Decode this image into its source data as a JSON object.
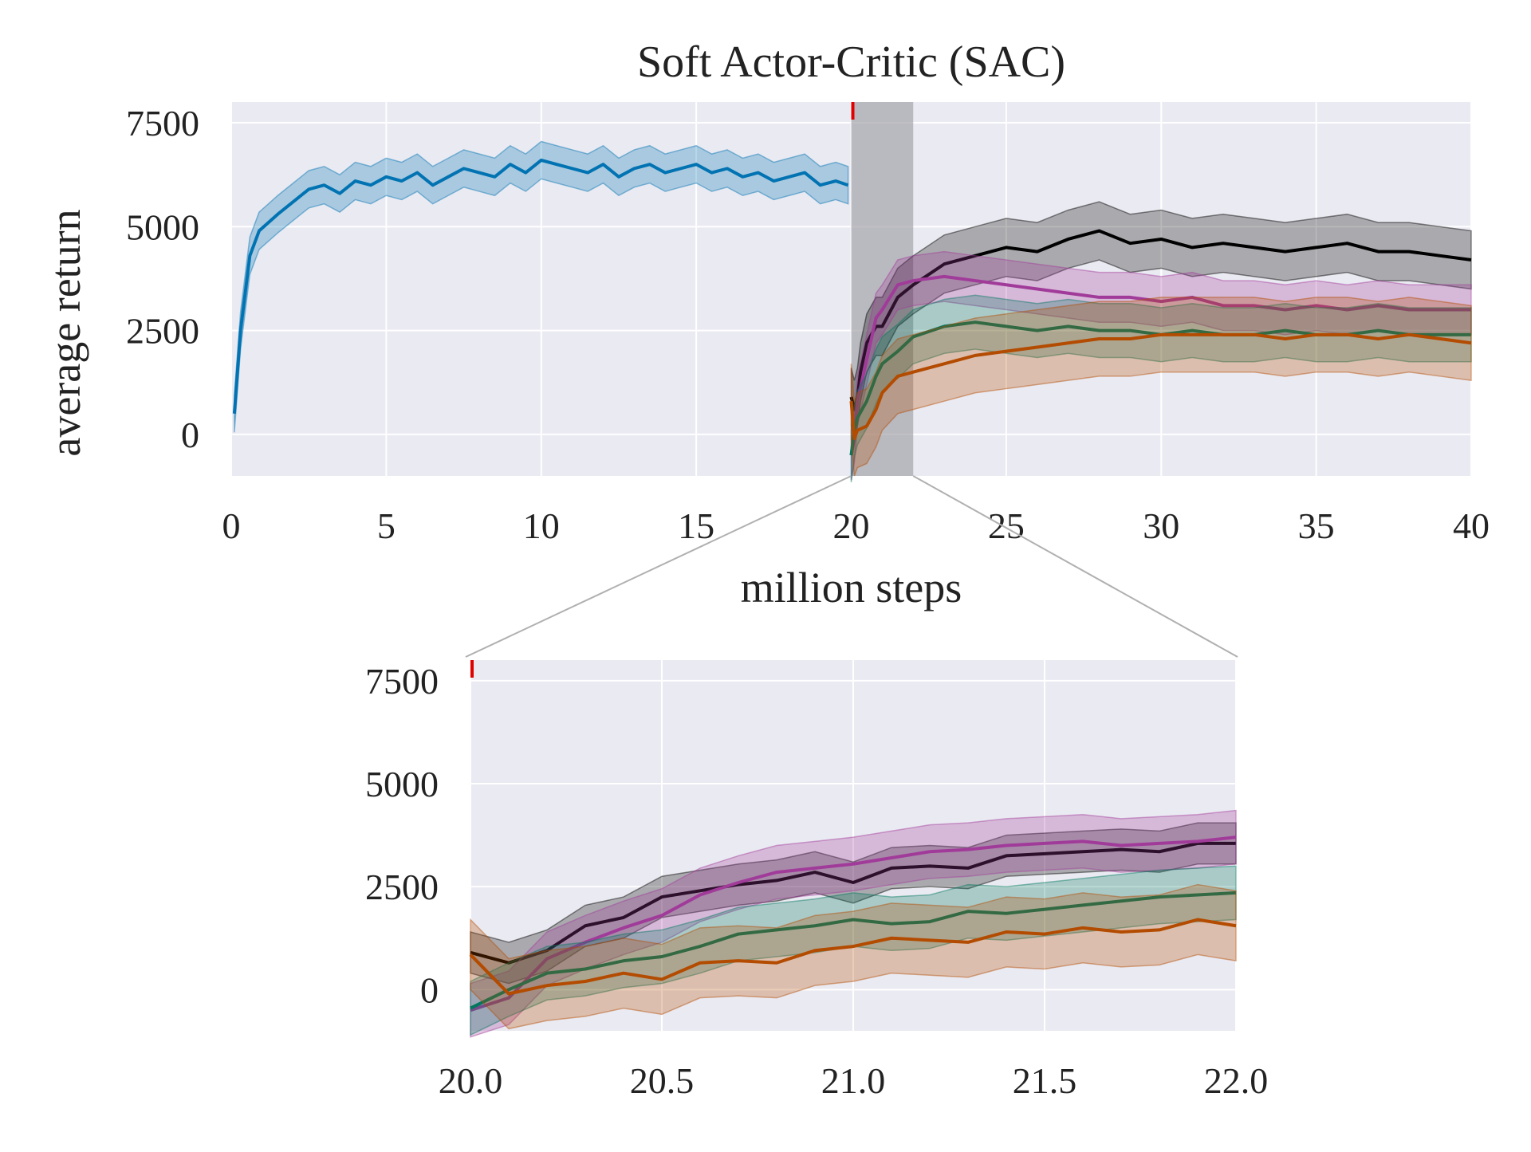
{
  "chart_data": [
    {
      "id": "main",
      "type": "line",
      "title": "Soft Actor-Critic (SAC)",
      "xlabel": "million steps",
      "ylabel": "average return",
      "xlim": [
        0,
        40
      ],
      "ylim": [
        -1000,
        8000
      ],
      "xticks": [
        0,
        5,
        10,
        15,
        20,
        25,
        30,
        35,
        40
      ],
      "xtick_labels": [
        "0",
        "5",
        "10",
        "15",
        "20",
        "25",
        "30",
        "35",
        "40"
      ],
      "yticks": [
        0,
        2500,
        5000,
        7500
      ],
      "ytick_labels": [
        "0",
        "2500",
        "5000",
        "7500"
      ],
      "grid": true,
      "shaded_region": [
        20,
        22
      ],
      "marker_x": 20,
      "series": [
        {
          "color": "#0173b2",
          "x": [
            0.1,
            0.3,
            0.6,
            0.9,
            1.2,
            1.5,
            2,
            2.5,
            3,
            3.5,
            4,
            4.5,
            5,
            5.5,
            6,
            6.5,
            7,
            7.5,
            8,
            8.5,
            9,
            9.5,
            10,
            10.5,
            11,
            11.5,
            12,
            12.5,
            13,
            13.5,
            14,
            14.5,
            15,
            15.5,
            16,
            16.5,
            17,
            17.5,
            18,
            18.5,
            19,
            19.5,
            19.9
          ],
          "y": [
            500,
            2500,
            4300,
            4900,
            5100,
            5300,
            5600,
            5900,
            6000,
            5800,
            6100,
            6000,
            6200,
            6100,
            6300,
            6000,
            6200,
            6400,
            6300,
            6200,
            6500,
            6300,
            6600,
            6500,
            6400,
            6300,
            6500,
            6200,
            6400,
            6500,
            6300,
            6400,
            6500,
            6300,
            6400,
            6200,
            6300,
            6100,
            6200,
            6300,
            6000,
            6100,
            6000
          ],
          "band": 450
        },
        {
          "color": "#000000",
          "x": [
            20.0,
            20.1,
            20.2,
            20.3,
            20.5,
            20.8,
            21,
            21.5,
            22,
            23,
            24,
            25,
            26,
            27,
            28,
            29,
            30,
            31,
            32,
            33,
            34,
            35,
            36,
            37,
            38,
            39,
            40
          ],
          "y": [
            900,
            600,
            900,
            1500,
            2200,
            2600,
            2600,
            3300,
            3600,
            4100,
            4300,
            4500,
            4400,
            4700,
            4900,
            4600,
            4700,
            4500,
            4600,
            4500,
            4400,
            4500,
            4600,
            4400,
            4400,
            4300,
            4200
          ],
          "band": 700
        },
        {
          "color": "#a13b9a",
          "x": [
            20.0,
            20.1,
            20.2,
            20.5,
            20.8,
            21,
            21.5,
            22,
            23,
            24,
            25,
            26,
            27,
            28,
            29,
            30,
            31,
            32,
            33,
            34,
            35,
            36,
            37,
            38,
            39,
            40
          ],
          "y": [
            -500,
            -100,
            800,
            1800,
            2800,
            3000,
            3600,
            3700,
            3800,
            3700,
            3600,
            3500,
            3400,
            3300,
            3300,
            3200,
            3300,
            3100,
            3100,
            3000,
            3100,
            3000,
            3100,
            3000,
            3000,
            3000
          ],
          "band": 600
        },
        {
          "color": "#02775e",
          "x": [
            20.0,
            20.1,
            20.2,
            20.5,
            20.8,
            21,
            21.5,
            22,
            23,
            24,
            25,
            26,
            27,
            28,
            29,
            30,
            31,
            32,
            33,
            34,
            35,
            36,
            37,
            38,
            39,
            40
          ],
          "y": [
            -500,
            100,
            400,
            800,
            1400,
            1700,
            2000,
            2350,
            2600,
            2700,
            2600,
            2500,
            2600,
            2500,
            2500,
            2400,
            2500,
            2400,
            2400,
            2500,
            2400,
            2400,
            2500,
            2400,
            2400,
            2400
          ],
          "band": 650
        },
        {
          "color": "#b34b00",
          "x": [
            20.0,
            20.1,
            20.2,
            20.5,
            20.8,
            21,
            21.5,
            22,
            23,
            24,
            25,
            26,
            27,
            28,
            29,
            30,
            31,
            32,
            33,
            34,
            35,
            36,
            37,
            38,
            39,
            40
          ],
          "y": [
            800,
            -100,
            100,
            200,
            600,
            1000,
            1400,
            1500,
            1700,
            1900,
            2000,
            2100,
            2200,
            2300,
            2300,
            2400,
            2400,
            2400,
            2400,
            2300,
            2400,
            2400,
            2300,
            2400,
            2300,
            2200
          ],
          "band": 900
        }
      ]
    },
    {
      "id": "inset",
      "type": "line",
      "title": "",
      "xlabel": "",
      "ylabel": "",
      "xlim": [
        20,
        22
      ],
      "ylim": [
        -1000,
        8000
      ],
      "xticks": [
        20.0,
        20.5,
        21.0,
        21.5,
        22.0
      ],
      "xtick_labels": [
        "20.0",
        "20.5",
        "21.0",
        "21.5",
        "22.0"
      ],
      "yticks": [
        0,
        2500,
        5000,
        7500
      ],
      "ytick_labels": [
        "0",
        "2500",
        "5000",
        "7500"
      ],
      "grid": true,
      "marker_x": 20,
      "series": [
        {
          "color": "#000000",
          "x": [
            20.0,
            20.1,
            20.2,
            20.3,
            20.4,
            20.5,
            20.6,
            20.7,
            20.8,
            20.9,
            21.0,
            21.1,
            21.2,
            21.3,
            21.4,
            21.5,
            21.6,
            21.7,
            21.8,
            21.9,
            22.0
          ],
          "y": [
            900,
            650,
            950,
            1550,
            1750,
            2250,
            2400,
            2550,
            2650,
            2850,
            2600,
            2950,
            3000,
            2950,
            3250,
            3300,
            3350,
            3400,
            3350,
            3550,
            3550
          ],
          "band": 500
        },
        {
          "color": "#a13b9a",
          "x": [
            20.0,
            20.1,
            20.2,
            20.3,
            20.4,
            20.5,
            20.6,
            20.7,
            20.8,
            20.9,
            21.0,
            21.1,
            21.2,
            21.3,
            21.4,
            21.5,
            21.6,
            21.7,
            21.8,
            21.9,
            22.0
          ],
          "y": [
            -500,
            -200,
            750,
            1150,
            1500,
            1800,
            2300,
            2600,
            2850,
            2950,
            3050,
            3200,
            3350,
            3400,
            3500,
            3550,
            3600,
            3500,
            3550,
            3600,
            3700
          ],
          "band": 650
        },
        {
          "color": "#02775e",
          "x": [
            20.0,
            20.1,
            20.2,
            20.3,
            20.4,
            20.5,
            20.6,
            20.7,
            20.8,
            20.9,
            21.0,
            21.1,
            21.2,
            21.3,
            21.4,
            21.5,
            21.6,
            21.7,
            21.8,
            21.9,
            22.0
          ],
          "y": [
            -450,
            0,
            400,
            500,
            700,
            800,
            1050,
            1350,
            1450,
            1550,
            1700,
            1600,
            1650,
            1900,
            1850,
            1950,
            2050,
            2150,
            2250,
            2300,
            2350
          ],
          "band": 650
        },
        {
          "color": "#b34b00",
          "x": [
            20.0,
            20.1,
            20.2,
            20.3,
            20.4,
            20.5,
            20.6,
            20.7,
            20.8,
            20.9,
            21.0,
            21.1,
            21.2,
            21.3,
            21.4,
            21.5,
            21.6,
            21.7,
            21.8,
            21.9,
            22.0
          ],
          "y": [
            850,
            -100,
            100,
            200,
            400,
            250,
            650,
            700,
            650,
            950,
            1050,
            1250,
            1200,
            1150,
            1400,
            1350,
            1500,
            1400,
            1450,
            1700,
            1550
          ],
          "band": 850
        }
      ]
    }
  ],
  "colors": {
    "plot_background": "#eaeaf2",
    "grid": "#ffffff",
    "shaded_region": "#9e9ea4",
    "connector": "#b0b0b0",
    "marker": "#e00000"
  }
}
